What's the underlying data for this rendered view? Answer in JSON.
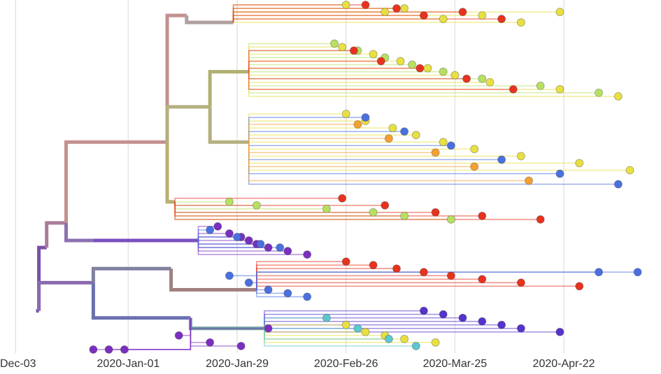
{
  "chart_data": {
    "type": "tree",
    "xlim": [
      -4,
      166
    ],
    "ylim": [
      0,
      100
    ],
    "xticks": [
      {
        "value": 0,
        "label": "Dec-03"
      },
      {
        "value": 29,
        "label": "2020-Jan-01"
      },
      {
        "value": 57,
        "label": "2020-Jan-29"
      },
      {
        "value": 85,
        "label": "2020-Feb-26"
      },
      {
        "value": 113,
        "label": "2020-Mar-25"
      },
      {
        "value": 141,
        "label": "2020-Apr-22"
      }
    ],
    "grid": true,
    "nodes": {
      "x": [
        6,
        8,
        13,
        39,
        44,
        50,
        41,
        20,
        47,
        20,
        40,
        45,
        60,
        60,
        62,
        64,
        56
      ],
      "y": [
        88,
        70,
        63,
        40,
        4,
        30,
        57,
        68,
        68,
        80,
        76,
        90,
        20,
        40,
        82,
        93,
        6
      ],
      "parent": [
        -1,
        0,
        1,
        2,
        3,
        3,
        3,
        2,
        7,
        0,
        9,
        9,
        5,
        5,
        10,
        11,
        4
      ],
      "color": [
        "#7b4fa8",
        "#7b4fa8",
        "#a87c9a",
        "#c49090",
        "#c49090",
        "#b5b080",
        "#b8b070",
        "#8a70b0",
        "#7a50c0",
        "#8a6ab0",
        "#8080a0",
        "#6a70b0",
        "#b0b070",
        "#b5b080",
        "#a08080",
        "#70a0a0",
        "#b0a0a0"
      ]
    },
    "tips": [
      {
        "parent": 16,
        "color": "#e8e040",
        "x": [
          85,
          95,
          100,
          110,
          120,
          130,
          140
        ],
        "y": [
          1,
          3,
          2,
          5,
          4,
          6,
          3
        ]
      },
      {
        "parent": 16,
        "color": "#e8321e",
        "x": [
          90,
          98,
          105,
          115,
          125
        ],
        "y": [
          1,
          2,
          4,
          3,
          5
        ]
      },
      {
        "parent": 12,
        "color": "#b8e060",
        "x": [
          82,
          88,
          95,
          102,
          110,
          120,
          135,
          150
        ],
        "y": [
          12,
          14,
          16,
          18,
          20,
          22,
          24,
          26
        ]
      },
      {
        "parent": 12,
        "color": "#e8e040",
        "x": [
          84,
          92,
          99,
          106,
          113,
          122,
          140,
          155
        ],
        "y": [
          13,
          15,
          17,
          19,
          21,
          23,
          25,
          27
        ]
      },
      {
        "parent": 12,
        "color": "#e8321e",
        "x": [
          87,
          94,
          104,
          116,
          128
        ],
        "y": [
          14,
          17,
          19,
          22,
          25
        ]
      },
      {
        "parent": 13,
        "color": "#e8e040",
        "x": [
          85,
          90,
          97,
          103,
          110,
          118,
          130,
          145,
          158
        ],
        "y": [
          32,
          34,
          36,
          38,
          40,
          42,
          44,
          46,
          48
        ]
      },
      {
        "parent": 13,
        "color": "#4a70e0",
        "x": [
          90,
          100,
          112,
          125,
          140,
          155
        ],
        "y": [
          33,
          37,
          41,
          45,
          49,
          52
        ]
      },
      {
        "parent": 13,
        "color": "#f5a030",
        "x": [
          88,
          96,
          108,
          118,
          132
        ],
        "y": [
          35,
          39,
          43,
          47,
          51
        ]
      },
      {
        "parent": 6,
        "color": "#b8e060",
        "x": [
          55,
          62,
          80,
          92,
          100,
          112
        ],
        "y": [
          57,
          58,
          59,
          60,
          61,
          62
        ]
      },
      {
        "parent": 6,
        "color": "#e8321e",
        "x": [
          84,
          95,
          108,
          120,
          135
        ],
        "y": [
          56,
          58,
          60,
          61,
          62
        ]
      },
      {
        "parent": 8,
        "color": "#7a2fc0",
        "x": [
          52,
          55,
          58,
          60,
          62,
          65,
          70,
          75
        ],
        "y": [
          64,
          66,
          67,
          68,
          69,
          70,
          71,
          72
        ]
      },
      {
        "parent": 8,
        "color": "#4a70e0",
        "x": [
          50,
          57,
          63,
          68
        ],
        "y": [
          65,
          67,
          69,
          70
        ]
      },
      {
        "parent": 14,
        "color": "#e8321e",
        "x": [
          85,
          92,
          98,
          105,
          112,
          120,
          130,
          145
        ],
        "y": [
          74,
          75,
          76,
          77,
          78,
          79,
          80,
          81
        ]
      },
      {
        "parent": 14,
        "color": "#4a70e0",
        "x": [
          55,
          60,
          65,
          70,
          75,
          150,
          160
        ],
        "y": [
          78,
          80,
          82,
          83,
          84,
          77,
          77
        ]
      },
      {
        "parent": 15,
        "color": "#5533cc",
        "x": [
          105,
          110,
          115,
          120,
          125,
          130,
          140
        ],
        "y": [
          88,
          89,
          90,
          91,
          92,
          93,
          94
        ]
      },
      {
        "parent": 15,
        "color": "#e8e040",
        "x": [
          85,
          90,
          95,
          100,
          108
        ],
        "y": [
          92,
          94,
          95,
          96,
          97
        ]
      },
      {
        "parent": 11,
        "color": "#7a2fc0",
        "x": [
          20,
          24,
          28,
          42,
          50,
          58,
          65
        ],
        "y": [
          99,
          99,
          99,
          95,
          97,
          98,
          93
        ]
      },
      {
        "parent": 15,
        "color": "#5ac8d0",
        "x": [
          80,
          88,
          96,
          103
        ],
        "y": [
          90,
          93,
          96,
          98
        ]
      }
    ]
  }
}
